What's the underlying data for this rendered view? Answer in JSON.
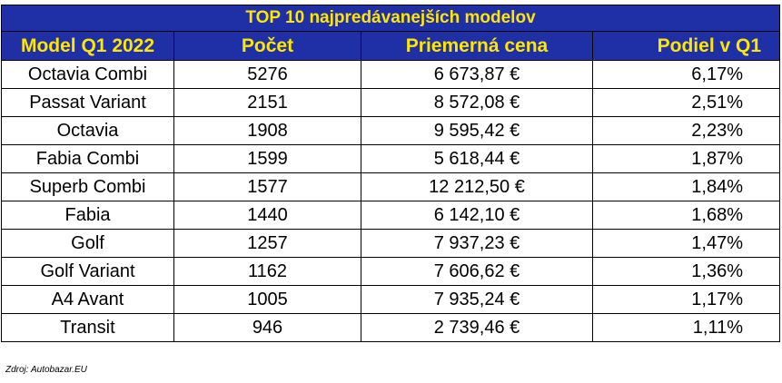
{
  "table": {
    "title": "TOP 10 najpredávanejších modelov",
    "headers": [
      "Model Q1 2022",
      "Počet",
      "Priemerná cena",
      "Podiel v Q1"
    ],
    "rows": [
      [
        "Octavia Combi",
        "5276",
        "6 673,87 €",
        "6,17%"
      ],
      [
        "Passat Variant",
        "2151",
        "8 572,08 €",
        "2,51%"
      ],
      [
        "Octavia",
        "1908",
        "9 595,42 €",
        "2,23%"
      ],
      [
        "Fabia Combi",
        "1599",
        "5 618,44 €",
        "1,87%"
      ],
      [
        "Superb Combi",
        "1577",
        "12 212,50 €",
        "1,84%"
      ],
      [
        "Fabia",
        "1440",
        "6 142,10 €",
        "1,68%"
      ],
      [
        "Golf",
        "1257",
        "7 937,23 €",
        "1,47%"
      ],
      [
        "Golf Variant",
        "1162",
        "7 606,62 €",
        "1,36%"
      ],
      [
        "A4 Avant",
        "1005",
        "7 935,24 €",
        "1,17%"
      ],
      [
        "Transit",
        "946",
        "2 739,46 €",
        "1,11%"
      ]
    ]
  },
  "source": "Zdroj: Autobazar.EU",
  "colors": {
    "header_bg": "#1f2fa6",
    "header_text": "#ffe600"
  }
}
